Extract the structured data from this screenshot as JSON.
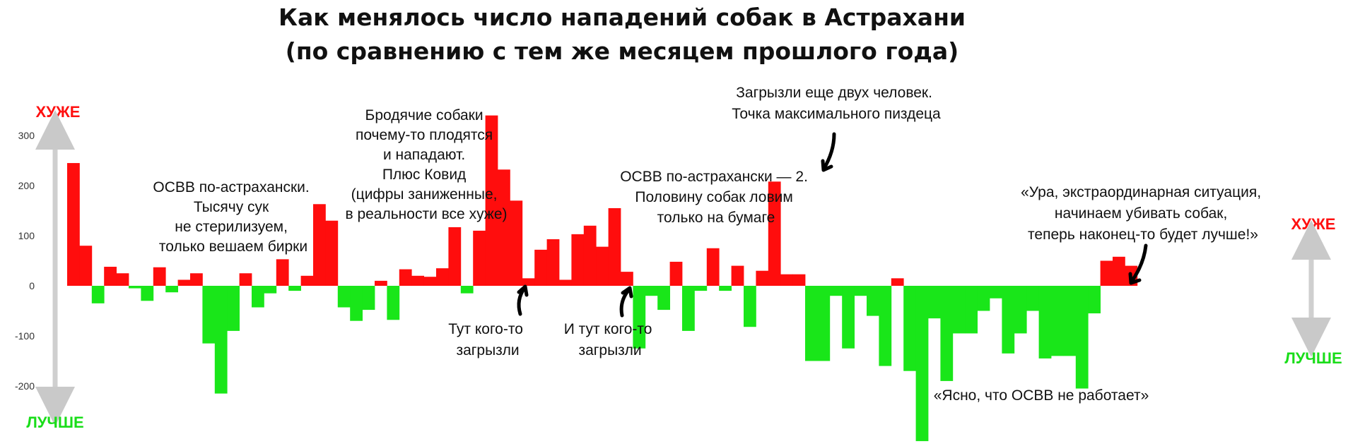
{
  "chart_data": {
    "type": "bar",
    "title": [
      "Как менялось число нападений собак в Астрахани",
      "(по сравнению с тем же месяцем прошлого года)"
    ],
    "xlabel": "",
    "ylabel": "",
    "ylim": [
      -310,
      340
    ],
    "yticks": [
      300,
      200,
      100,
      0,
      -100,
      -200
    ],
    "grid": false,
    "colors": {
      "positive": "#ff0d0d",
      "negative": "#19e619"
    },
    "values": [
      245,
      80,
      -35,
      38,
      25,
      -5,
      -30,
      37,
      -13,
      12,
      25,
      -115,
      -215,
      -90,
      25,
      -43,
      -15,
      53,
      -10,
      20,
      163,
      130,
      -43,
      -70,
      -48,
      10,
      -68,
      33,
      20,
      18,
      35,
      117,
      -15,
      110,
      340,
      232,
      170,
      15,
      72,
      93,
      12,
      103,
      120,
      78,
      155,
      28,
      -125,
      -20,
      -48,
      48,
      -90,
      -10,
      75,
      -10,
      40,
      -82,
      30,
      208,
      23,
      23,
      -150,
      -150,
      -20,
      -125,
      -20,
      -60,
      -160,
      15,
      -170,
      -310,
      -65,
      -190,
      -95,
      -95,
      -50,
      -25,
      -135,
      -95,
      -50,
      -145,
      -140,
      -140,
      -205,
      -55,
      50,
      58,
      40
    ]
  },
  "labels": {
    "worse_left": "ХУЖЕ",
    "better_left": "ЛУЧШЕ",
    "worse_right": "ХУЖЕ",
    "better_right": "ЛУЧШЕ"
  },
  "annotations": {
    "osvv1": [
      "ОСВВ по-астрахански.",
      "Тысячу сук",
      "не стерилизуем,",
      "только вешаем бирки"
    ],
    "covid": [
      "Бродячие собаки",
      "почему-то плодятся",
      "и нападают.",
      "Плюс Ковид",
      "(цифры заниженные,",
      "в реальности все хуже)"
    ],
    "bite1": [
      "Тут кого-то",
      "загрызли"
    ],
    "bite2": [
      "И тут кого-то",
      "загрызли"
    ],
    "osvv2": [
      "ОСВВ по-астрахански — 2.",
      "Половину собак ловим",
      "только на бумаге"
    ],
    "peak": [
      "Загрызли еще двух человек.",
      "Точка максимального пиздеца"
    ],
    "hooray": [
      "«Ура, экстраординарная ситуация,",
      "начинаем убивать собак,",
      "теперь наконец-то будет лучше!»"
    ],
    "clear": [
      "«Ясно, что ОСВВ не работает»"
    ]
  }
}
